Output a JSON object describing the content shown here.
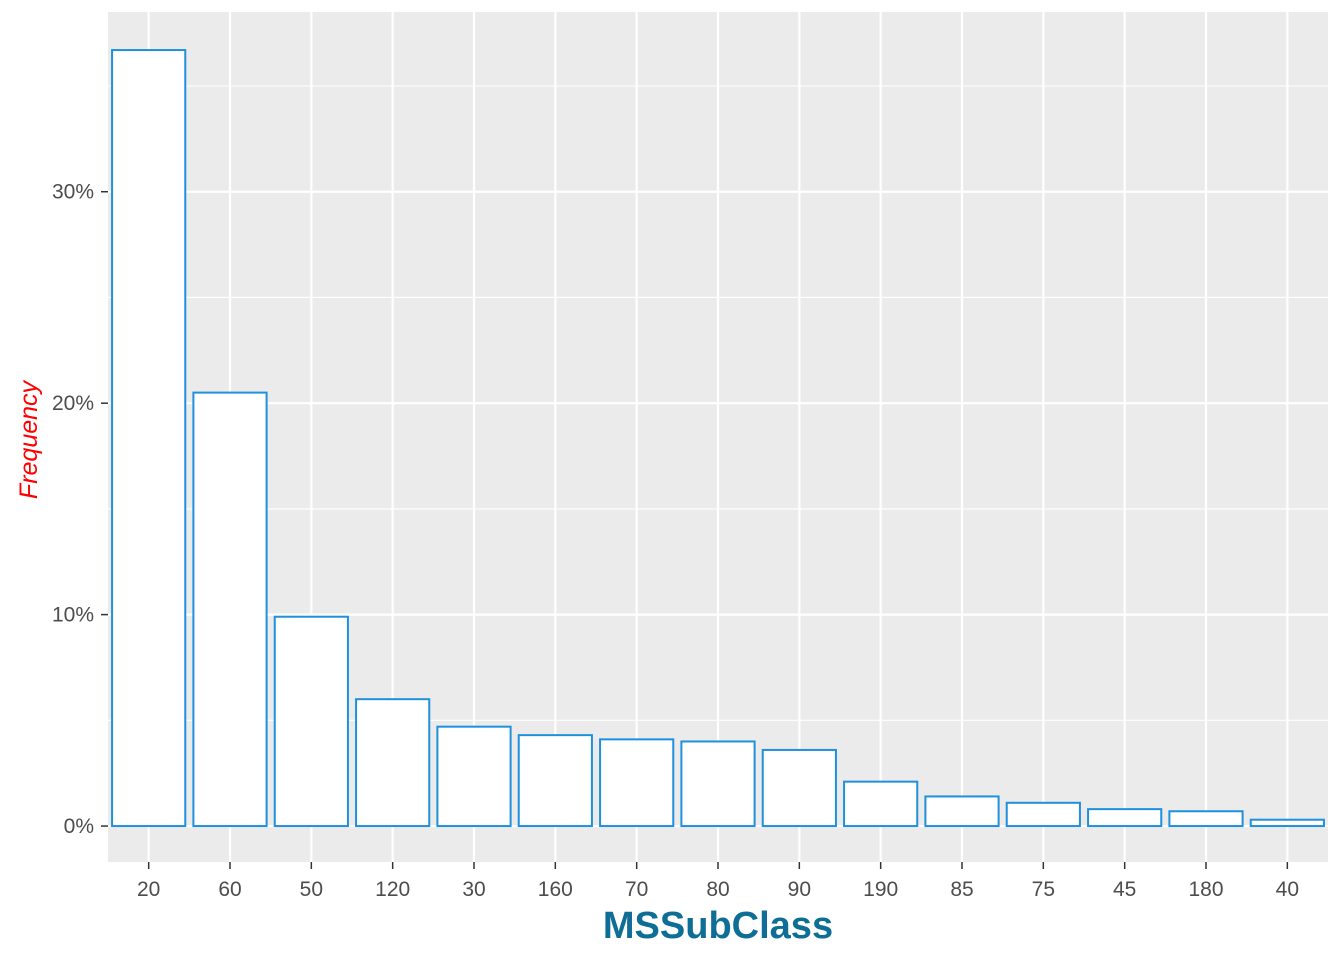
{
  "chart_data": {
    "type": "bar",
    "xlabel": "MSSubClass",
    "ylabel": "Frequency",
    "categories": [
      "20",
      "60",
      "50",
      "120",
      "30",
      "160",
      "70",
      "80",
      "90",
      "190",
      "85",
      "75",
      "45",
      "180",
      "40"
    ],
    "values": [
      36.7,
      20.5,
      9.9,
      6.0,
      4.7,
      4.3,
      4.1,
      4.0,
      3.6,
      2.1,
      1.4,
      1.1,
      0.8,
      0.7,
      0.3
    ],
    "ylim": [
      -1.7,
      38.5
    ],
    "yticks": [
      0,
      10,
      20,
      30
    ],
    "ytick_labels": [
      "0%",
      "10%",
      "20%",
      "30%"
    ],
    "grid": true,
    "colors": {
      "panel_background": "#ebebeb",
      "gridline": "#ffffff",
      "bar_fill": "#ffffff",
      "bar_outline": "#1e90dc",
      "xlabel": "#0e6e96",
      "ylabel": "#ff0000",
      "tick_text": "#4d4d4d",
      "tick_mark": "#333333"
    }
  }
}
